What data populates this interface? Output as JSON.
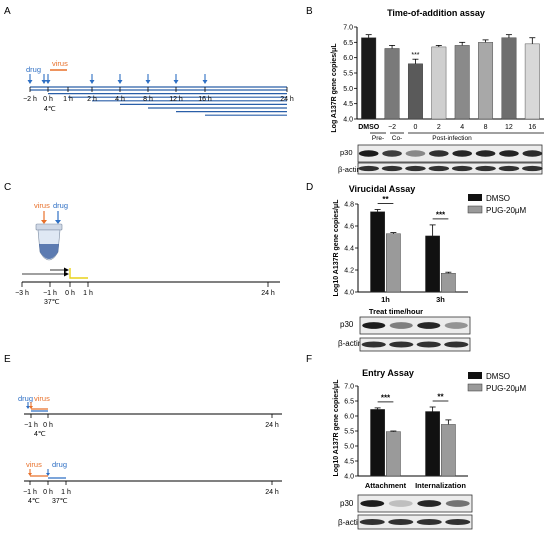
{
  "panels": {
    "A": {
      "letter": "A",
      "drug_label": "drug",
      "virus_label": "virus",
      "time_ticks": [
        "−2 h",
        "0 h",
        "1 h",
        "2 h",
        "4 h",
        "8 h",
        "12 h",
        "16 h",
        "24 h"
      ],
      "temp_label": "4℃",
      "colors": {
        "drug": "#2e6fc4",
        "virus": "#e8702a",
        "line": "#2a5fa8"
      }
    },
    "B": {
      "letter": "B",
      "blot_p30": "p30",
      "blot_actin": "β-actin",
      "group_pre": "Pre-",
      "group_co": "Co-",
      "group_post": "Post-infection",
      "sig_label": "***"
    },
    "C": {
      "letter": "C",
      "virus_label": "virus",
      "drug_label": "drug",
      "time_ticks": [
        "−3 h",
        "−1 h",
        "0 h",
        "1 h",
        "24 h"
      ],
      "temp_label": "37℃"
    },
    "D": {
      "letter": "D",
      "legend": [
        "DMSO",
        "PUG-20μM"
      ],
      "blot_p30": "p30",
      "blot_actin": "β-actin",
      "sig_labels": [
        "**",
        "***"
      ]
    },
    "E": {
      "letter": "E",
      "row1": {
        "drug_label": "drug",
        "virus_label": "virus",
        "time_ticks": [
          "−1 h",
          "0 h",
          "24 h"
        ],
        "temp_label": "4℃"
      },
      "row2": {
        "virus_label": "virus",
        "drug_label": "drug",
        "time_ticks": [
          "−1 h",
          "0 h",
          "1 h",
          "24 h"
        ],
        "temp_labels": [
          "4℃",
          "37℃"
        ]
      }
    },
    "F": {
      "letter": "F",
      "legend": [
        "DMSO",
        "PUG-20μM"
      ],
      "blot_p30": "p30",
      "blot_actin": "β-actin",
      "sig_labels": [
        "***",
        "**"
      ]
    }
  },
  "chart_data": [
    {
      "type": "bar",
      "title": "Time-of-addition assay",
      "ylabel": "Log A137R gene copies/μL",
      "categories": [
        "DMSO",
        "−2",
        "0",
        "2",
        "4",
        "8",
        "12",
        "16"
      ],
      "values": [
        6.65,
        6.3,
        5.8,
        6.35,
        6.4,
        6.5,
        6.65,
        6.45
      ],
      "errors": [
        0.1,
        0.1,
        0.15,
        0.05,
        0.1,
        0.08,
        0.1,
        0.2
      ],
      "colors": [
        "#1a1a1a",
        "#7a7a7a",
        "#5a5a5a",
        "#cfcfcf",
        "#8a8a8a",
        "#a8a8a8",
        "#6e6e6e",
        "#d8d8d8"
      ],
      "ylim": [
        4.0,
        7.0
      ],
      "yticks": [
        "4.0",
        "4.5",
        "5.0",
        "5.5",
        "6.0",
        "6.5",
        "7.0"
      ]
    },
    {
      "type": "bar",
      "title": "Virucidal Assay",
      "ylabel": "Log10 A137R gene copies/μL",
      "xlabel": "Treat time/hour",
      "categories": [
        "1h",
        "3h"
      ],
      "series": [
        {
          "name": "DMSO",
          "values": [
            4.73,
            4.51
          ],
          "errors": [
            0.02,
            0.1
          ]
        },
        {
          "name": "PUG-20μM",
          "values": [
            4.53,
            4.17
          ],
          "errors": [
            0.01,
            0.01
          ]
        }
      ],
      "colors": [
        "#111111",
        "#9a9a9a"
      ],
      "ylim": [
        4.0,
        4.8
      ],
      "yticks": [
        "4.0",
        "4.2",
        "4.4",
        "4.6",
        "4.8"
      ]
    },
    {
      "type": "bar",
      "title": "Entry Assay",
      "ylabel": "Log10 A137R gene copies/μL",
      "categories": [
        "Attachment",
        "Internalization"
      ],
      "series": [
        {
          "name": "DMSO",
          "values": [
            6.22,
            6.15
          ],
          "errors": [
            0.05,
            0.15
          ]
        },
        {
          "name": "PUG-20μM",
          "values": [
            5.48,
            5.72
          ],
          "errors": [
            0.02,
            0.15
          ]
        }
      ],
      "colors": [
        "#111111",
        "#9a9a9a"
      ],
      "ylim": [
        4.0,
        7.0
      ],
      "yticks": [
        "4.0",
        "4.5",
        "5.0",
        "5.5",
        "6.0",
        "6.5",
        "7.0"
      ]
    }
  ]
}
